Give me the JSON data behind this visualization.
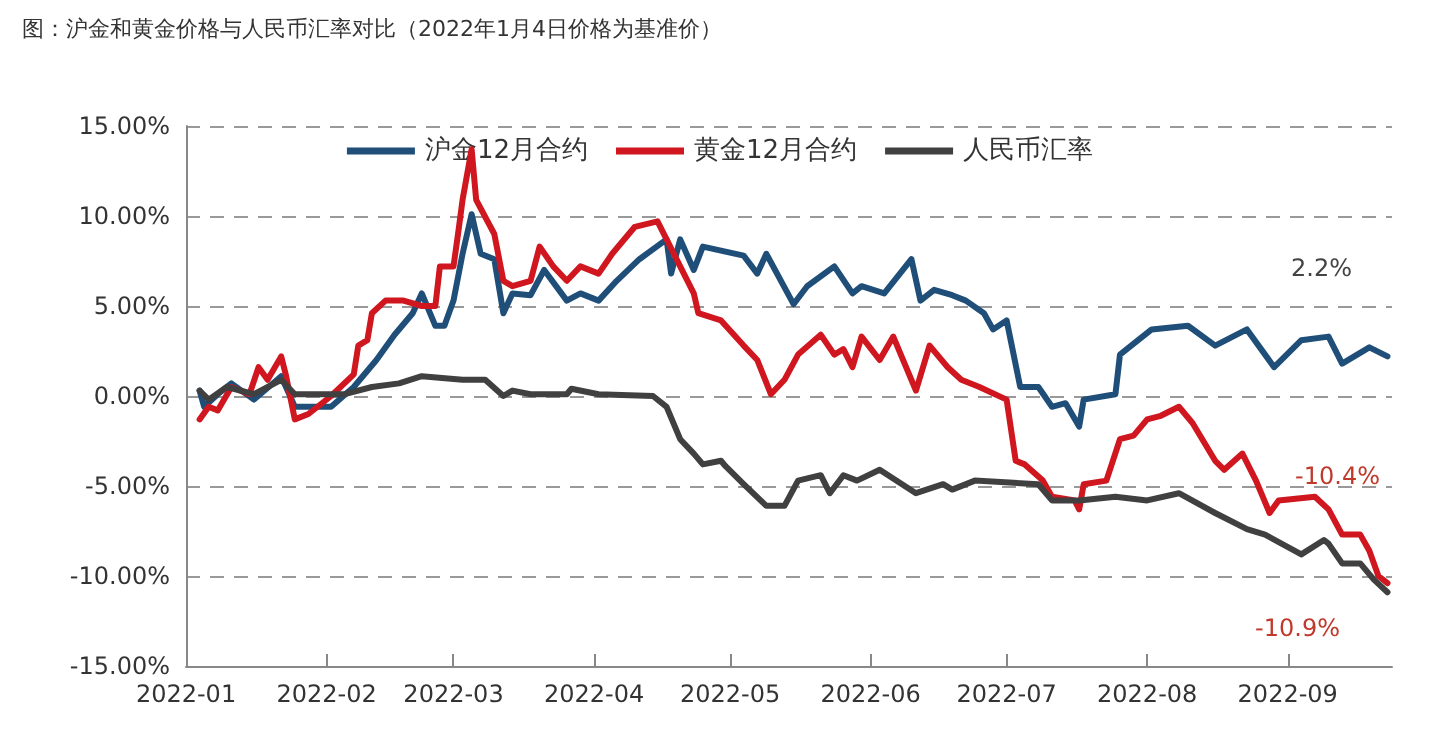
{
  "chart_data": {
    "type": "line",
    "title": "图：沪金和黄金价格与人民币汇率对比（2022年1月4日价格为基准价）",
    "xlim": [
      "2022-01-01",
      "2022-09-24"
    ],
    "xticks": [
      "2022-01",
      "2022-02",
      "2022-03",
      "2022-04",
      "2022-05",
      "2022-06",
      "2022-07",
      "2022-08",
      "2022-09"
    ],
    "ylim": [
      -15,
      15
    ],
    "yticks": [
      {
        "value": -15,
        "label": "-15.00%"
      },
      {
        "value": -10,
        "label": "-10.00%"
      },
      {
        "value": -5,
        "label": "-5.00%"
      },
      {
        "value": 0,
        "label": "0.00%"
      },
      {
        "value": 5,
        "label": "5.00%"
      },
      {
        "value": 10,
        "label": "10.00%"
      },
      {
        "value": 15,
        "label": "15.00%"
      }
    ],
    "grid": "y",
    "legend": "top",
    "marker": "none",
    "line_style": "solid",
    "annotations": [
      "2.2%",
      "-10.4%",
      "-10.9%"
    ],
    "series": [
      {
        "name": "沪金12月合约",
        "color": "#1f4e79",
        "x": [
          "2022-01-04",
          "2022-01-05",
          "2022-01-08",
          "2022-01-11",
          "2022-01-16",
          "2022-01-22",
          "2022-01-25",
          "2022-02-02",
          "2022-02-07",
          "2022-02-12",
          "2022-02-16",
          "2022-02-20",
          "2022-02-22",
          "2022-02-25",
          "2022-02-27",
          "2022-03-01",
          "2022-03-03",
          "2022-03-05",
          "2022-03-07",
          "2022-03-10",
          "2022-03-12",
          "2022-03-14",
          "2022-03-18",
          "2022-03-21",
          "2022-03-26",
          "2022-03-29",
          "2022-04-02",
          "2022-04-06",
          "2022-04-11",
          "2022-04-17",
          "2022-04-18",
          "2022-04-20",
          "2022-04-23",
          "2022-04-25",
          "2022-05-04",
          "2022-05-07",
          "2022-05-09",
          "2022-05-15",
          "2022-05-18",
          "2022-05-24",
          "2022-05-28",
          "2022-05-30",
          "2022-06-04",
          "2022-06-10",
          "2022-06-12",
          "2022-06-15",
          "2022-06-19",
          "2022-06-22",
          "2022-06-26",
          "2022-06-28",
          "2022-07-01",
          "2022-07-04",
          "2022-07-08",
          "2022-07-11",
          "2022-07-14",
          "2022-07-17",
          "2022-07-18",
          "2022-07-25",
          "2022-07-26",
          "2022-07-30",
          "2022-08-02",
          "2022-08-10",
          "2022-08-16",
          "2022-08-23",
          "2022-08-29",
          "2022-09-04",
          "2022-09-10",
          "2022-09-13",
          "2022-09-19",
          "2022-09-23"
        ],
        "values": [
          0.3,
          -0.6,
          0.1,
          0.7,
          -0.2,
          1.1,
          -0.6,
          -0.6,
          0.5,
          2.0,
          3.4,
          4.6,
          5.7,
          3.9,
          3.9,
          5.3,
          7.9,
          10.1,
          7.9,
          7.6,
          4.6,
          5.7,
          5.6,
          7.0,
          5.3,
          5.7,
          5.3,
          6.4,
          7.6,
          8.7,
          6.8,
          8.7,
          7.0,
          8.3,
          7.8,
          6.8,
          7.9,
          5.1,
          6.1,
          7.2,
          5.7,
          6.1,
          5.7,
          7.6,
          5.3,
          5.9,
          5.6,
          5.3,
          4.6,
          3.7,
          4.2,
          0.5,
          0.5,
          -0.6,
          -0.4,
          -1.7,
          -0.2,
          0.1,
          2.3,
          3.1,
          3.7,
          3.9,
          2.8,
          3.7,
          1.6,
          3.1,
          3.3,
          1.8,
          2.7,
          2.2
        ]
      },
      {
        "name": "黄金12月合约",
        "color": "#d0161f",
        "x": [
          "2022-01-04",
          "2022-01-06",
          "2022-01-08",
          "2022-01-11",
          "2022-01-15",
          "2022-01-17",
          "2022-01-19",
          "2022-01-22",
          "2022-01-23",
          "2022-01-25",
          "2022-01-28",
          "2022-02-02",
          "2022-02-07",
          "2022-02-08",
          "2022-02-10",
          "2022-02-11",
          "2022-02-14",
          "2022-02-18",
          "2022-02-22",
          "2022-02-25",
          "2022-02-26",
          "2022-03-01",
          "2022-03-02",
          "2022-03-03",
          "2022-03-05",
          "2022-03-06",
          "2022-03-10",
          "2022-03-12",
          "2022-03-14",
          "2022-03-18",
          "2022-03-20",
          "2022-03-23",
          "2022-03-26",
          "2022-03-29",
          "2022-04-02",
          "2022-04-05",
          "2022-04-10",
          "2022-04-15",
          "2022-04-17",
          "2022-04-23",
          "2022-04-24",
          "2022-04-29",
          "2022-05-04",
          "2022-05-07",
          "2022-05-10",
          "2022-05-13",
          "2022-05-16",
          "2022-05-21",
          "2022-05-24",
          "2022-05-26",
          "2022-05-28",
          "2022-05-30",
          "2022-06-03",
          "2022-06-06",
          "2022-06-11",
          "2022-06-14",
          "2022-06-18",
          "2022-06-21",
          "2022-06-25",
          "2022-07-01",
          "2022-07-03",
          "2022-07-05",
          "2022-07-09",
          "2022-07-11",
          "2022-07-16",
          "2022-07-17",
          "2022-07-18",
          "2022-07-23",
          "2022-07-26",
          "2022-07-29",
          "2022-08-01",
          "2022-08-04",
          "2022-08-08",
          "2022-08-11",
          "2022-08-16",
          "2022-08-18",
          "2022-08-22",
          "2022-08-25",
          "2022-08-28",
          "2022-08-30",
          "2022-09-07",
          "2022-09-10",
          "2022-09-13",
          "2022-09-17",
          "2022-09-19",
          "2022-09-21",
          "2022-09-23"
        ],
        "values": [
          -1.3,
          -0.6,
          -0.8,
          0.5,
          0.1,
          1.6,
          0.9,
          2.2,
          1.2,
          -1.3,
          -1.0,
          0.0,
          1.2,
          2.8,
          3.1,
          4.6,
          5.3,
          5.3,
          5.0,
          5.0,
          7.2,
          7.2,
          9.0,
          10.9,
          13.7,
          10.9,
          9.0,
          6.4,
          6.1,
          6.4,
          8.3,
          7.2,
          6.4,
          7.2,
          6.8,
          7.9,
          9.4,
          9.7,
          8.7,
          5.7,
          4.6,
          4.2,
          2.8,
          2.0,
          0.1,
          0.9,
          2.3,
          3.4,
          2.3,
          2.6,
          1.6,
          3.3,
          2.0,
          3.3,
          0.3,
          2.8,
          1.6,
          0.9,
          0.5,
          -0.2,
          -3.6,
          -3.8,
          -4.7,
          -5.6,
          -5.8,
          -6.3,
          -4.9,
          -4.7,
          -2.4,
          -2.2,
          -1.3,
          -1.1,
          -0.6,
          -1.5,
          -3.6,
          -4.1,
          -3.2,
          -4.7,
          -6.5,
          -5.8,
          -5.6,
          -6.3,
          -7.7,
          -7.7,
          -8.6,
          -10.0,
          -10.4
        ]
      },
      {
        "name": "人民币汇率",
        "color": "#404040",
        "x": [
          "2022-01-04",
          "2022-01-06",
          "2022-01-10",
          "2022-01-16",
          "2022-01-22",
          "2022-01-25",
          "2022-02-05",
          "2022-02-11",
          "2022-02-17",
          "2022-02-22",
          "2022-03-03",
          "2022-03-08",
          "2022-03-12",
          "2022-03-14",
          "2022-03-18",
          "2022-03-26",
          "2022-03-27",
          "2022-04-02",
          "2022-04-14",
          "2022-04-17",
          "2022-04-20",
          "2022-04-23",
          "2022-04-25",
          "2022-04-29",
          "2022-04-30",
          "2022-05-04",
          "2022-05-09",
          "2022-05-13",
          "2022-05-16",
          "2022-05-21",
          "2022-05-23",
          "2022-05-26",
          "2022-05-29",
          "2022-06-03",
          "2022-06-11",
          "2022-06-17",
          "2022-06-19",
          "2022-06-24",
          "2022-07-08",
          "2022-07-11",
          "2022-07-17",
          "2022-07-25",
          "2022-08-01",
          "2022-08-08",
          "2022-08-16",
          "2022-08-23",
          "2022-08-27",
          "2022-09-04",
          "2022-09-09",
          "2022-09-10",
          "2022-09-13",
          "2022-09-17",
          "2022-09-20",
          "2022-09-23"
        ],
        "values": [
          0.3,
          -0.2,
          0.5,
          0.1,
          0.9,
          0.1,
          0.1,
          0.5,
          0.7,
          1.1,
          0.9,
          0.9,
          0.0,
          0.3,
          0.1,
          0.1,
          0.4,
          0.1,
          0.0,
          -0.6,
          -2.4,
          -3.2,
          -3.8,
          -3.6,
          -3.9,
          -4.9,
          -6.1,
          -6.1,
          -4.7,
          -4.4,
          -5.4,
          -4.4,
          -4.7,
          -4.1,
          -5.4,
          -4.9,
          -5.2,
          -4.7,
          -4.9,
          -5.8,
          -5.8,
          -5.6,
          -5.8,
          -5.4,
          -6.5,
          -7.4,
          -7.7,
          -8.8,
          -8.0,
          -8.2,
          -9.3,
          -9.3,
          -10.2,
          -10.9
        ]
      }
    ]
  }
}
